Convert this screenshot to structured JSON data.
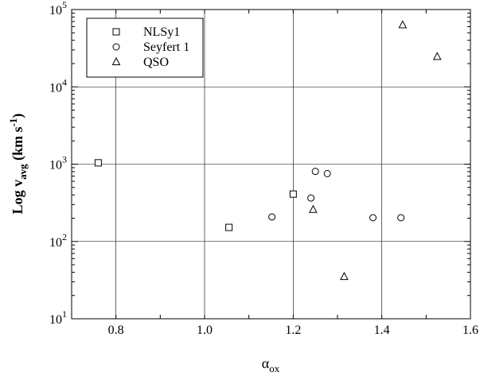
{
  "chart_data": {
    "type": "scatter",
    "title": "",
    "xlabel": {
      "main": "α",
      "sub": "ox"
    },
    "ylabel": {
      "pre": "Log v",
      "sub": "avg",
      "mid": " (km s",
      "sup": "-1",
      "post": ")"
    },
    "xlim": [
      0.7,
      1.6
    ],
    "ylim": [
      10,
      100000
    ],
    "y_scale": "log",
    "grid": true,
    "legend_position": "top-left",
    "x_ticks": [
      {
        "value": 0.8,
        "label": "0.8"
      },
      {
        "value": 1.0,
        "label": "1.0"
      },
      {
        "value": 1.2,
        "label": "1.2"
      },
      {
        "value": 1.4,
        "label": "1.4"
      },
      {
        "value": 1.6,
        "label": "1.6"
      }
    ],
    "y_ticks": [
      {
        "value": 10,
        "base": "10",
        "exp": "1"
      },
      {
        "value": 100,
        "base": "10",
        "exp": "2"
      },
      {
        "value": 1000,
        "base": "10",
        "exp": "3"
      },
      {
        "value": 10000,
        "base": "10",
        "exp": "4"
      },
      {
        "value": 100000,
        "base": "10",
        "exp": "5"
      }
    ],
    "series": [
      {
        "name": "NLSy1",
        "marker": "square",
        "points": [
          {
            "x": 0.76,
            "y": 1040
          },
          {
            "x": 1.055,
            "y": 152
          },
          {
            "x": 1.2,
            "y": 410
          }
        ]
      },
      {
        "name": "Seyfert 1",
        "marker": "circle",
        "points": [
          {
            "x": 1.152,
            "y": 208
          },
          {
            "x": 1.24,
            "y": 365
          },
          {
            "x": 1.25,
            "y": 805
          },
          {
            "x": 1.277,
            "y": 755
          },
          {
            "x": 1.38,
            "y": 203
          },
          {
            "x": 1.443,
            "y": 203
          }
        ]
      },
      {
        "name": "QSO",
        "marker": "triangle",
        "points": [
          {
            "x": 1.245,
            "y": 258
          },
          {
            "x": 1.315,
            "y": 35
          },
          {
            "x": 1.447,
            "y": 63000
          },
          {
            "x": 1.525,
            "y": 24500
          }
        ]
      }
    ]
  }
}
